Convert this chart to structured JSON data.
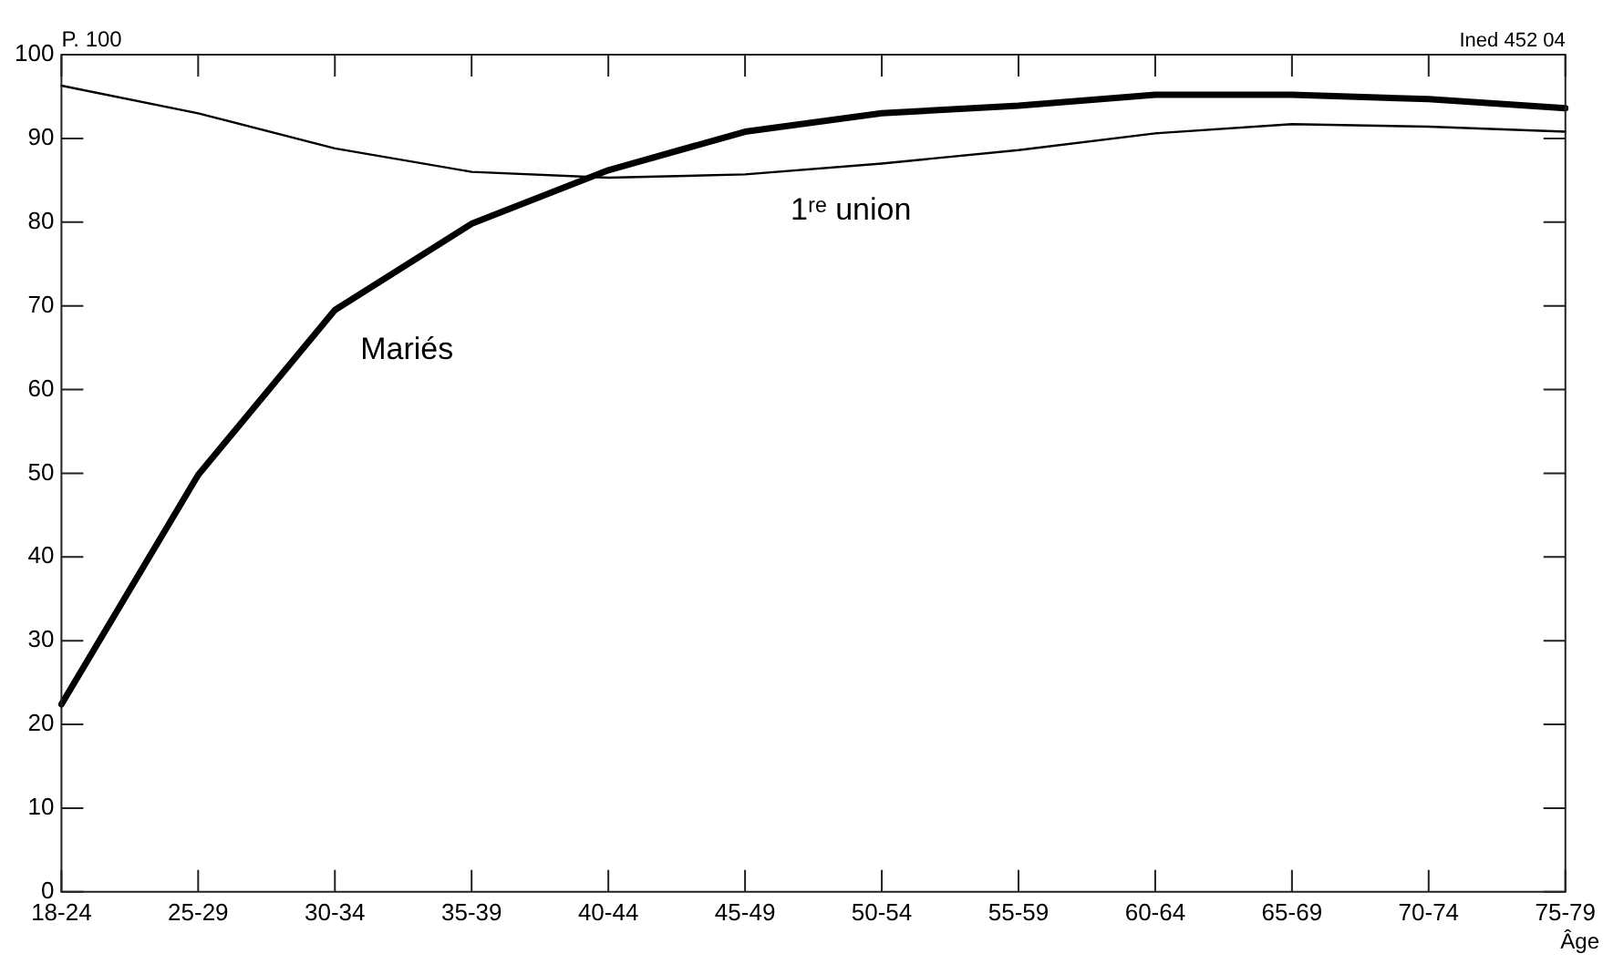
{
  "chart_data": {
    "type": "line",
    "ylabel": "P. 100",
    "xlabel": "Âge",
    "annotations": [
      "Ined 452 04"
    ],
    "categories": [
      "18-24",
      "25-29",
      "30-34",
      "35-39",
      "40-44",
      "45-49",
      "50-54",
      "55-59",
      "60-64",
      "65-69",
      "70-74",
      "75-79"
    ],
    "series": [
      {
        "name": "Mariés",
        "color": "#000000",
        "values": [
          22.4,
          49.8,
          69.5,
          79.8,
          86.2,
          90.8,
          93,
          93.9,
          95.2,
          95.2,
          94.7,
          93.6
        ]
      },
      {
        "name": "1ʳᵉ union",
        "color": "#000000",
        "values": [
          96.3,
          93,
          88.8,
          86,
          85.3,
          85.7,
          87,
          88.6,
          90.6,
          91.7,
          91.4,
          90.8
        ]
      }
    ],
    "ylim": [
      0,
      100
    ],
    "yticks": [
      0,
      10,
      20,
      30,
      40,
      50,
      60,
      70,
      80,
      90,
      100
    ],
    "grid": false,
    "legend": false,
    "marker": "none",
    "line_style": "solid"
  }
}
